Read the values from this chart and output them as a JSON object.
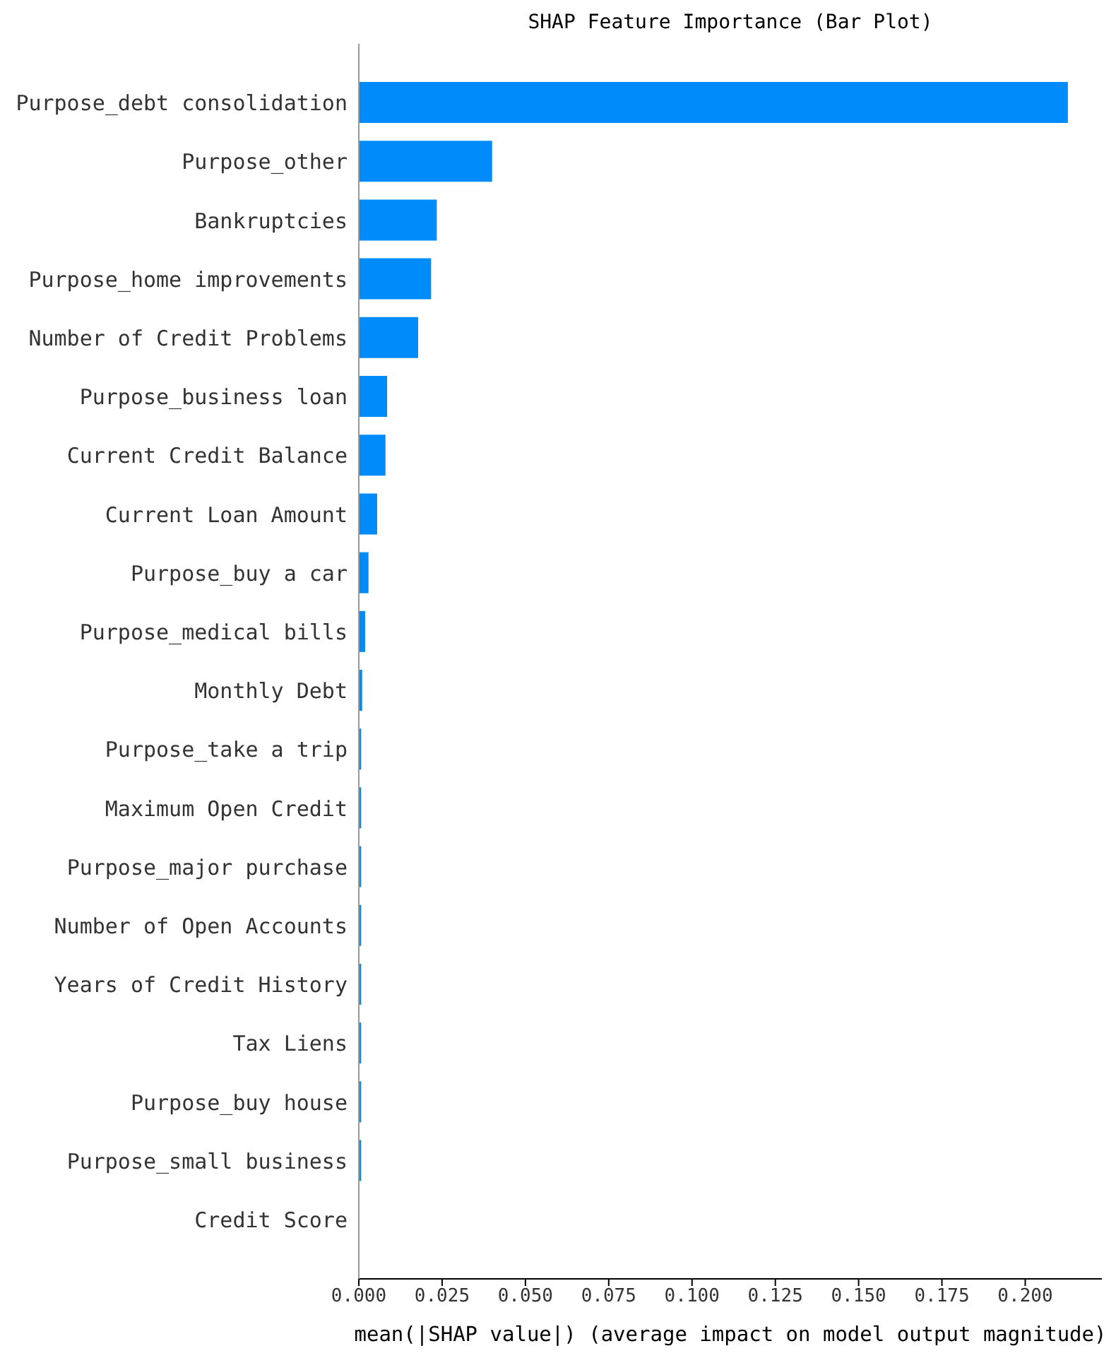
{
  "chart_data": {
    "type": "bar",
    "orientation": "horizontal",
    "title": "SHAP Feature Importance (Bar Plot)",
    "xlabel": "mean(|SHAP value|) (average impact on model output magnitude)",
    "categories": [
      "Purpose_debt consolidation",
      "Purpose_other",
      "Bankruptcies",
      "Purpose_home improvements",
      "Number of Credit Problems",
      "Purpose_business loan",
      "Current Credit Balance",
      "Current Loan Amount",
      "Purpose_buy a car",
      "Purpose_medical bills",
      "Monthly Debt",
      "Purpose_take a trip",
      "Maximum Open Credit",
      "Purpose_major purchase",
      "Number of Open Accounts",
      "Years of Credit History",
      "Tax Liens",
      "Purpose_buy house",
      "Purpose_small business",
      "Credit Score"
    ],
    "values": [
      0.2128,
      0.04,
      0.0234,
      0.0217,
      0.0178,
      0.0085,
      0.008,
      0.0055,
      0.0029,
      0.0019,
      0.001,
      0.0007,
      0.0007,
      0.0007,
      0.0007,
      0.0007,
      0.0007,
      0.0007,
      0.0007,
      null
    ],
    "color": "#008bfb",
    "xlim": [
      0,
      0.223
    ],
    "xticks": [
      {
        "value": 0,
        "label": "0.000"
      },
      {
        "value": 0.025,
        "label": "0.025"
      },
      {
        "value": 0.05,
        "label": "0.050"
      },
      {
        "value": 0.075,
        "label": "0.075"
      },
      {
        "value": 0.1,
        "label": "0.100"
      },
      {
        "value": 0.125,
        "label": "0.125"
      },
      {
        "value": 0.15,
        "label": "0.150"
      },
      {
        "value": 0.175,
        "label": "0.175"
      },
      {
        "value": 0.2,
        "label": "0.200"
      }
    ],
    "grid": false,
    "legend": false
  }
}
